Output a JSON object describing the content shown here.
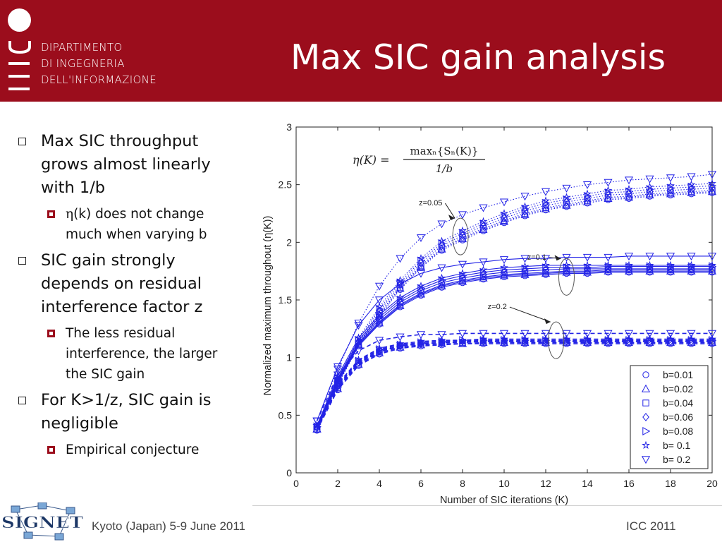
{
  "header": {
    "dept_lines": [
      "DIPARTIMENTO",
      "DI INGEGNERIA",
      "DELL'INFORMAZIONE"
    ],
    "title": "Max SIC gain analysis"
  },
  "bullets": [
    {
      "text": "Max SIC throughput grows almost linearly with 1/b",
      "sub": [
        {
          "eta": "η",
          "text": "(k) does not change much when varying b"
        }
      ]
    },
    {
      "text": "SIC gain strongly depends on residual interference factor z",
      "sub": [
        {
          "text": "The less residual interference, the larger the SIC gain"
        }
      ]
    },
    {
      "text": "For K>1/z, SIC gain is negligible",
      "sub": [
        {
          "text": "Empirical conjecture"
        }
      ]
    }
  ],
  "footer": {
    "left": "Kyoto (Japan) 5-9 June 2011",
    "right": "ICC 2011"
  },
  "logo": {
    "text": "SIGNET"
  },
  "colors": {
    "header": "#9b0d1c",
    "series": "#2323e6"
  },
  "chart_data": {
    "type": "line",
    "xlabel": "Number of SIC iterations (K)",
    "ylabel": "Normalized maximum throughout (η(K))",
    "xlim": [
      0,
      20
    ],
    "ylim": [
      0,
      3
    ],
    "xticks": [
      "0",
      "2",
      "4",
      "6",
      "8",
      "10",
      "12",
      "14",
      "16",
      "18",
      "20"
    ],
    "yticks": [
      "0",
      "0.5",
      "1",
      "1.5",
      "2",
      "2.5",
      "3"
    ],
    "x": [
      1,
      2,
      3,
      4,
      5,
      6,
      7,
      8,
      9,
      10,
      11,
      12,
      13,
      14,
      15,
      16,
      17,
      18,
      19,
      20
    ],
    "formula": "η(K) = max_n{S_n(K)} / (1/b)",
    "legend_position": "bottom-right",
    "legend": [
      {
        "label": "b=0.01",
        "marker": "circle"
      },
      {
        "label": "b=0.02",
        "marker": "triangle-up"
      },
      {
        "label": "b=0.04",
        "marker": "square"
      },
      {
        "label": "b=0.06",
        "marker": "diamond"
      },
      {
        "label": "b=0.08",
        "marker": "triangle-right"
      },
      {
        "label": "b= 0.1",
        "marker": "star"
      },
      {
        "label": "b= 0.2",
        "marker": "triangle-down"
      }
    ],
    "groups": [
      {
        "label": "z=0.05",
        "style": "dotted",
        "label_at": [
          7.1,
          2.32
        ],
        "ellipse_at": [
          7.9,
          2.05
        ],
        "series": [
          {
            "b": "0.01",
            "values": [
              0.37,
              0.76,
              1.1,
              1.36,
              1.59,
              1.78,
              1.93,
              2.02,
              2.1,
              2.17,
              2.23,
              2.28,
              2.31,
              2.34,
              2.37,
              2.38,
              2.4,
              2.41,
              2.42,
              2.43
            ]
          },
          {
            "b": "0.02",
            "values": [
              0.38,
              0.77,
              1.11,
              1.37,
              1.6,
              1.79,
              1.94,
              2.03,
              2.11,
              2.18,
              2.24,
              2.29,
              2.32,
              2.35,
              2.38,
              2.39,
              2.41,
              2.42,
              2.43,
              2.44
            ]
          },
          {
            "b": "0.04",
            "values": [
              0.38,
              0.78,
              1.12,
              1.38,
              1.61,
              1.8,
              1.95,
              2.04,
              2.12,
              2.19,
              2.25,
              2.3,
              2.33,
              2.36,
              2.39,
              2.4,
              2.42,
              2.43,
              2.44,
              2.45
            ]
          },
          {
            "b": "0.06",
            "values": [
              0.39,
              0.79,
              1.13,
              1.4,
              1.63,
              1.82,
              1.97,
              2.06,
              2.14,
              2.21,
              2.27,
              2.32,
              2.35,
              2.38,
              2.41,
              2.42,
              2.44,
              2.45,
              2.46,
              2.47
            ]
          },
          {
            "b": "0.08",
            "values": [
              0.4,
              0.8,
              1.15,
              1.42,
              1.65,
              1.84,
              1.99,
              2.08,
              2.16,
              2.23,
              2.29,
              2.34,
              2.37,
              2.4,
              2.43,
              2.44,
              2.46,
              2.47,
              2.48,
              2.49
            ]
          },
          {
            "b": "0.1",
            "values": [
              0.41,
              0.81,
              1.17,
              1.44,
              1.67,
              1.86,
              2.01,
              2.1,
              2.18,
              2.25,
              2.31,
              2.36,
              2.39,
              2.42,
              2.45,
              2.46,
              2.48,
              2.49,
              2.5,
              2.51
            ]
          },
          {
            "b": "0.2",
            "values": [
              0.45,
              0.9,
              1.3,
              1.62,
              1.86,
              2.04,
              2.16,
              2.24,
              2.3,
              2.35,
              2.4,
              2.44,
              2.47,
              2.5,
              2.52,
              2.54,
              2.55,
              2.56,
              2.57,
              2.59
            ]
          }
        ]
      },
      {
        "label": "z=0.1",
        "style": "solid",
        "label_at": [
          12.1,
          1.85
        ],
        "ellipse_at": [
          13.0,
          1.7
        ],
        "series": [
          {
            "b": "0.01",
            "values": [
              0.37,
              0.78,
              1.1,
              1.29,
              1.44,
              1.54,
              1.61,
              1.65,
              1.68,
              1.7,
              1.71,
              1.72,
              1.73,
              1.73,
              1.74,
              1.74,
              1.74,
              1.74,
              1.74,
              1.74
            ]
          },
          {
            "b": "0.02",
            "values": [
              0.38,
              0.79,
              1.11,
              1.3,
              1.45,
              1.55,
              1.62,
              1.66,
              1.69,
              1.71,
              1.72,
              1.73,
              1.74,
              1.74,
              1.75,
              1.75,
              1.75,
              1.75,
              1.75,
              1.75
            ]
          },
          {
            "b": "0.04",
            "values": [
              0.38,
              0.8,
              1.12,
              1.31,
              1.46,
              1.56,
              1.63,
              1.67,
              1.7,
              1.72,
              1.73,
              1.74,
              1.75,
              1.75,
              1.76,
              1.76,
              1.76,
              1.76,
              1.76,
              1.76
            ]
          },
          {
            "b": "0.06",
            "values": [
              0.39,
              0.81,
              1.13,
              1.33,
              1.48,
              1.58,
              1.65,
              1.69,
              1.72,
              1.74,
              1.75,
              1.76,
              1.77,
              1.77,
              1.77,
              1.77,
              1.77,
              1.77,
              1.77,
              1.77
            ]
          },
          {
            "b": "0.08",
            "values": [
              0.4,
              0.82,
              1.15,
              1.35,
              1.5,
              1.6,
              1.67,
              1.71,
              1.74,
              1.76,
              1.77,
              1.78,
              1.78,
              1.78,
              1.79,
              1.79,
              1.79,
              1.79,
              1.79,
              1.79
            ]
          },
          {
            "b": "0.1",
            "values": [
              0.41,
              0.84,
              1.17,
              1.37,
              1.52,
              1.62,
              1.69,
              1.73,
              1.76,
              1.78,
              1.79,
              1.8,
              1.8,
              1.8,
              1.8,
              1.8,
              1.8,
              1.8,
              1.8,
              1.8
            ]
          },
          {
            "b": "0.2",
            "values": [
              0.45,
              0.92,
              1.28,
              1.5,
              1.64,
              1.73,
              1.78,
              1.81,
              1.83,
              1.85,
              1.86,
              1.86,
              1.87,
              1.87,
              1.87,
              1.88,
              1.88,
              1.88,
              1.88,
              1.88
            ]
          }
        ]
      },
      {
        "label": "z=0.2",
        "style": "dashed",
        "label_at": [
          10.2,
          1.42
        ],
        "ellipse_at": [
          12.5,
          1.15
        ],
        "series": [
          {
            "b": "0.01",
            "values": [
              0.37,
              0.72,
              0.93,
              1.03,
              1.08,
              1.1,
              1.11,
              1.12,
              1.12,
              1.12,
              1.12,
              1.12,
              1.12,
              1.12,
              1.12,
              1.12,
              1.12,
              1.12,
              1.12,
              1.12
            ]
          },
          {
            "b": "0.02",
            "values": [
              0.38,
              0.73,
              0.94,
              1.04,
              1.09,
              1.11,
              1.12,
              1.12,
              1.13,
              1.13,
              1.13,
              1.13,
              1.13,
              1.13,
              1.13,
              1.13,
              1.13,
              1.13,
              1.13,
              1.13
            ]
          },
          {
            "b": "0.04",
            "values": [
              0.38,
              0.74,
              0.95,
              1.05,
              1.1,
              1.12,
              1.13,
              1.13,
              1.14,
              1.14,
              1.14,
              1.14,
              1.14,
              1.14,
              1.14,
              1.14,
              1.14,
              1.14,
              1.14,
              1.14
            ]
          },
          {
            "b": "0.06",
            "values": [
              0.39,
              0.75,
              0.96,
              1.06,
              1.1,
              1.12,
              1.13,
              1.14,
              1.14,
              1.14,
              1.14,
              1.14,
              1.14,
              1.14,
              1.14,
              1.14,
              1.14,
              1.14,
              1.14,
              1.14
            ]
          },
          {
            "b": "0.08",
            "values": [
              0.4,
              0.76,
              0.97,
              1.07,
              1.11,
              1.13,
              1.14,
              1.15,
              1.15,
              1.15,
              1.15,
              1.15,
              1.15,
              1.15,
              1.15,
              1.15,
              1.15,
              1.15,
              1.15,
              1.15
            ]
          },
          {
            "b": "0.1",
            "values": [
              0.41,
              0.77,
              0.98,
              1.08,
              1.12,
              1.14,
              1.15,
              1.15,
              1.16,
              1.16,
              1.16,
              1.16,
              1.16,
              1.16,
              1.16,
              1.16,
              1.16,
              1.16,
              1.16,
              1.16
            ]
          },
          {
            "b": "0.2",
            "values": [
              0.45,
              0.85,
              1.06,
              1.15,
              1.18,
              1.2,
              1.2,
              1.21,
              1.21,
              1.21,
              1.21,
              1.21,
              1.21,
              1.21,
              1.21,
              1.21,
              1.21,
              1.21,
              1.21,
              1.21
            ]
          }
        ]
      }
    ]
  }
}
